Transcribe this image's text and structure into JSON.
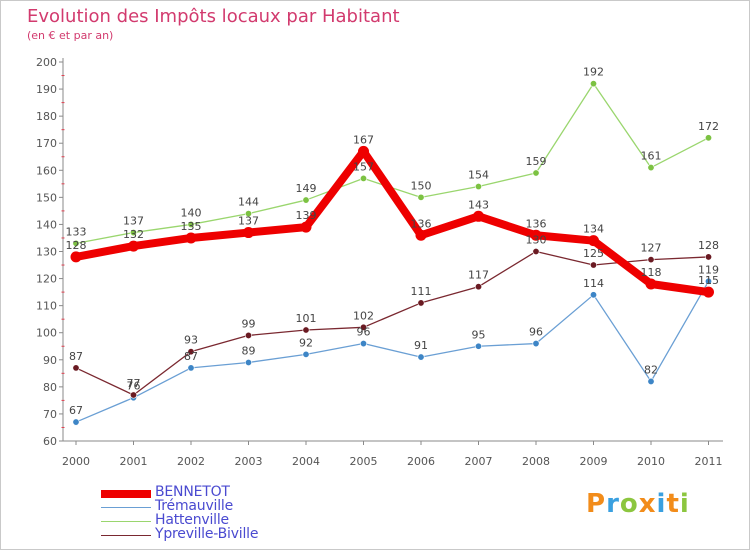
{
  "header": {
    "title": "Evolution des Impôts locaux par Habitant",
    "subtitle": "(en € et par an)"
  },
  "logo": {
    "text": "Proxiti",
    "letters": [
      "P",
      "r",
      "o",
      "x",
      "i",
      "t",
      "i"
    ]
  },
  "chart_data": {
    "type": "line",
    "title": "Evolution des Impôts locaux par Habitant",
    "subtitle": "(en € et par an)",
    "xlabel": "",
    "ylabel": "",
    "categories": [
      "2000",
      "2001",
      "2002",
      "2003",
      "2004",
      "2005",
      "2006",
      "2007",
      "2008",
      "2009",
      "2010",
      "2011"
    ],
    "ylim": [
      60,
      200
    ],
    "yticks": [
      60,
      70,
      80,
      90,
      100,
      110,
      120,
      130,
      140,
      150,
      160,
      170,
      180,
      190,
      200
    ],
    "grid": false,
    "legend_position": "bottom-left",
    "series": [
      {
        "name": "Hattenville",
        "color": "#9ad66e",
        "marker_color": "#7cc242",
        "values": [
          133,
          137,
          140,
          144,
          149,
          157,
          150,
          154,
          159,
          192,
          161,
          172
        ],
        "labels": [
          "133",
          "137",
          "140",
          "144",
          "149",
          "157",
          "150",
          "154",
          "159",
          "192",
          "161",
          "172"
        ]
      },
      {
        "name": "Trémauville",
        "color": "#6a9fd4",
        "marker_color": "#3d85c6",
        "values": [
          67,
          76,
          87,
          89,
          92,
          96,
          91,
          95,
          96,
          114,
          82,
          119
        ],
        "labels": [
          "67",
          "76",
          "87",
          "89",
          "92",
          "96",
          "91",
          "95",
          "96",
          "114",
          "82",
          "119"
        ]
      },
      {
        "name": "Ypreville-Biville",
        "color": "#7a2830",
        "marker_color": "#6a1a22",
        "values": [
          87,
          77,
          93,
          99,
          101,
          102,
          111,
          117,
          130,
          125,
          127,
          128
        ],
        "labels": [
          "87",
          "77",
          "93",
          "99",
          "101",
          "102",
          "111",
          "117",
          "130",
          "125",
          "127",
          "128"
        ]
      },
      {
        "name": "BENNETOT",
        "color": "#ee0000",
        "marker_color": "#ee0000",
        "bold": true,
        "values": [
          128,
          132,
          135,
          137,
          139,
          167,
          136,
          143,
          136,
          134,
          118,
          115
        ],
        "labels": [
          "128",
          "132",
          "135",
          "137",
          "139",
          "167",
          "136",
          "143",
          "136",
          "134",
          "118",
          "115"
        ]
      }
    ],
    "legend_order": [
      "BENNETOT",
      "Trémauville",
      "Hattenville",
      "Ypreville-Biville"
    ]
  }
}
